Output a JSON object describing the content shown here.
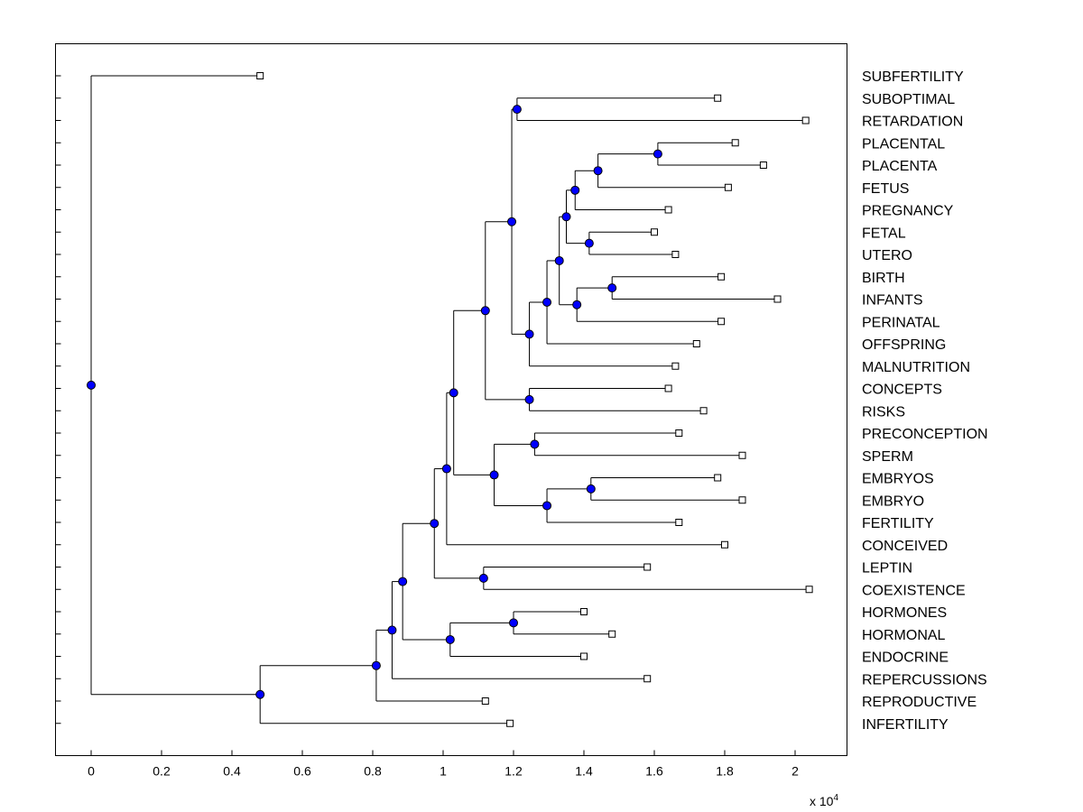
{
  "chart_data": {
    "type": "dendrogram",
    "xlim": [
      -0.1,
      2.14
    ],
    "x_scale_label": "x 10",
    "x_scale_exponent": "4",
    "xticks": [
      {
        "value": 0,
        "label": "0"
      },
      {
        "value": 0.2,
        "label": "0.2"
      },
      {
        "value": 0.4,
        "label": "0.4"
      },
      {
        "value": 0.6,
        "label": "0.6"
      },
      {
        "value": 0.8,
        "label": "0.8"
      },
      {
        "value": 1,
        "label": "1"
      },
      {
        "value": 1.2,
        "label": "1.2"
      },
      {
        "value": 1.4,
        "label": "1.4"
      },
      {
        "value": 1.6,
        "label": "1.6"
      },
      {
        "value": 1.8,
        "label": "1.8"
      },
      {
        "value": 2,
        "label": "2"
      }
    ],
    "leaves": [
      {
        "label": "SUBFERTILITY",
        "x": 0.48
      },
      {
        "label": "SUBOPTIMAL",
        "x": 1.78
      },
      {
        "label": "RETARDATION",
        "x": 2.03
      },
      {
        "label": "PLACENTAL",
        "x": 1.83
      },
      {
        "label": "PLACENTA",
        "x": 1.91
      },
      {
        "label": "FETUS",
        "x": 1.81
      },
      {
        "label": "PREGNANCY",
        "x": 1.64
      },
      {
        "label": "FETAL",
        "x": 1.6
      },
      {
        "label": "UTERO",
        "x": 1.66
      },
      {
        "label": "BIRTH",
        "x": 1.79
      },
      {
        "label": "INFANTS",
        "x": 1.95
      },
      {
        "label": "PERINATAL",
        "x": 1.79
      },
      {
        "label": "OFFSPRING",
        "x": 1.72
      },
      {
        "label": "MALNUTRITION",
        "x": 1.66
      },
      {
        "label": "CONCEPTS",
        "x": 1.64
      },
      {
        "label": "RISKS",
        "x": 1.74
      },
      {
        "label": "PRECONCEPTION",
        "x": 1.67
      },
      {
        "label": "SPERM",
        "x": 1.85
      },
      {
        "label": "EMBRYOS",
        "x": 1.78
      },
      {
        "label": "EMBRYO",
        "x": 1.85
      },
      {
        "label": "FERTILITY",
        "x": 1.67
      },
      {
        "label": "CONCEIVED",
        "x": 1.8
      },
      {
        "label": "LEPTIN",
        "x": 1.58
      },
      {
        "label": "COEXISTENCE",
        "x": 2.04
      },
      {
        "label": "HORMONES",
        "x": 1.4
      },
      {
        "label": "HORMONAL",
        "x": 1.48
      },
      {
        "label": "ENDOCRINE",
        "x": 1.4
      },
      {
        "label": "REPERCUSSIONS",
        "x": 1.58
      },
      {
        "label": "REPRODUCTIVE",
        "x": 1.12
      },
      {
        "label": "INFERTILITY",
        "x": 1.19
      }
    ],
    "nodes": [
      {
        "id": "n0",
        "x": 0.0,
        "children": [
          "L0",
          "n1"
        ]
      },
      {
        "id": "n1",
        "x": 0.48,
        "children": [
          "n2",
          "L29"
        ]
      },
      {
        "id": "n2",
        "x": 0.81,
        "children": [
          "n3",
          "L28"
        ]
      },
      {
        "id": "n3",
        "x": 0.855,
        "children": [
          "n4",
          "L27"
        ]
      },
      {
        "id": "n4",
        "x": 0.885,
        "children": [
          "n5",
          "n6"
        ]
      },
      {
        "id": "n5",
        "x": 0.975,
        "children": [
          "n7",
          "n8"
        ]
      },
      {
        "id": "n6",
        "x": 1.02,
        "children": [
          "n9",
          "L26"
        ]
      },
      {
        "id": "n9",
        "x": 1.2,
        "children": [
          "L24",
          "L25"
        ]
      },
      {
        "id": "n8",
        "x": 1.115,
        "children": [
          "L22",
          "L23"
        ]
      },
      {
        "id": "n7",
        "x": 1.01,
        "children": [
          "n10",
          "L21"
        ]
      },
      {
        "id": "n10",
        "x": 1.03,
        "children": [
          "n11",
          "n12"
        ]
      },
      {
        "id": "n12",
        "x": 1.145,
        "children": [
          "n13",
          "n14"
        ]
      },
      {
        "id": "n13",
        "x": 1.26,
        "children": [
          "L16",
          "L17"
        ]
      },
      {
        "id": "n14",
        "x": 1.295,
        "children": [
          "n15",
          "L20"
        ]
      },
      {
        "id": "n15",
        "x": 1.42,
        "children": [
          "L18",
          "L19"
        ]
      },
      {
        "id": "n11",
        "x": 1.12,
        "children": [
          "n16",
          "n17"
        ]
      },
      {
        "id": "n17",
        "x": 1.245,
        "children": [
          "L14",
          "L15"
        ]
      },
      {
        "id": "n16",
        "x": 1.195,
        "children": [
          "n18",
          "n19"
        ]
      },
      {
        "id": "n18",
        "x": 1.21,
        "children": [
          "L1",
          "L2"
        ]
      },
      {
        "id": "n19",
        "x": 1.245,
        "children": [
          "n20",
          "L13"
        ]
      },
      {
        "id": "n20",
        "x": 1.295,
        "children": [
          "n21",
          "L12"
        ]
      },
      {
        "id": "n21",
        "x": 1.33,
        "children": [
          "n22",
          "n23"
        ]
      },
      {
        "id": "n23",
        "x": 1.38,
        "children": [
          "n24",
          "L11"
        ]
      },
      {
        "id": "n24",
        "x": 1.48,
        "children": [
          "L9",
          "L10"
        ]
      },
      {
        "id": "n22",
        "x": 1.35,
        "children": [
          "n25",
          "n26"
        ]
      },
      {
        "id": "n26",
        "x": 1.415,
        "children": [
          "L7",
          "L8"
        ]
      },
      {
        "id": "n25",
        "x": 1.375,
        "children": [
          "n27",
          "L6"
        ]
      },
      {
        "id": "n27",
        "x": 1.44,
        "children": [
          "n28",
          "L5"
        ]
      },
      {
        "id": "n28",
        "x": 1.61,
        "children": [
          "L3",
          "L4"
        ]
      }
    ],
    "colors": {
      "node_fill": "#0000ff",
      "leaf_fill": "#ffffff",
      "line": "#000000",
      "background": "#ffffff"
    }
  }
}
